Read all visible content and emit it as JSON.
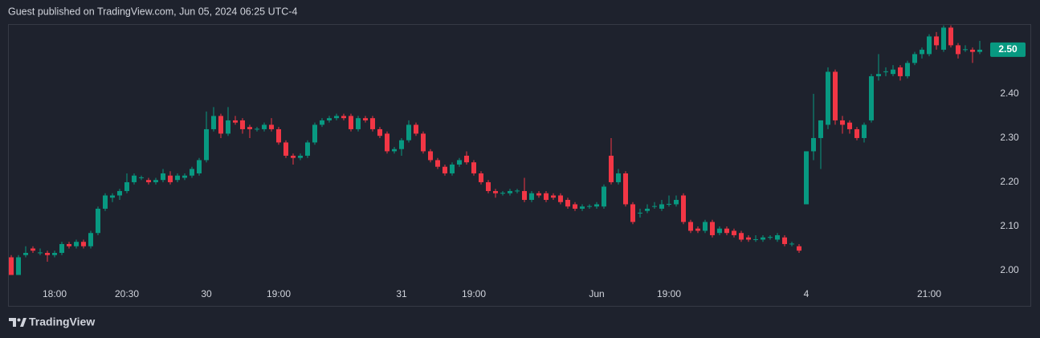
{
  "header": "Guest published on TradingView.com, Jun 05, 2024 06:25 UTC-4",
  "footer_brand": "TradingView",
  "chart_data": {
    "type": "candlestick",
    "up_color": "#089981",
    "down_color": "#f23645",
    "grid": false,
    "ylim": [
      1.92,
      2.558
    ],
    "yticks": [
      {
        "value": 2.0,
        "label": "2.00"
      },
      {
        "value": 2.1,
        "label": "2.10"
      },
      {
        "value": 2.2,
        "label": "2.20"
      },
      {
        "value": 2.3,
        "label": "2.30"
      },
      {
        "value": 2.4,
        "label": "2.40"
      },
      {
        "value": 2.5,
        "label": "2.50"
      }
    ],
    "last_price": {
      "value": 2.5,
      "label": "2.50"
    },
    "categories": [
      null,
      null,
      null,
      null,
      null,
      null,
      "18:00",
      null,
      null,
      null,
      null,
      null,
      null,
      null,
      null,
      null,
      "20:30",
      null,
      null,
      null,
      null,
      null,
      null,
      null,
      null,
      null,
      null,
      "30",
      null,
      null,
      null,
      null,
      null,
      null,
      null,
      null,
      null,
      "19:00",
      null,
      null,
      null,
      null,
      null,
      null,
      null,
      null,
      null,
      null,
      null,
      null,
      null,
      null,
      null,
      null,
      "31",
      null,
      null,
      null,
      null,
      null,
      null,
      null,
      null,
      null,
      "19:00",
      null,
      null,
      null,
      null,
      null,
      null,
      null,
      null,
      null,
      null,
      null,
      null,
      null,
      null,
      null,
      null,
      "Jun",
      null,
      null,
      null,
      null,
      null,
      null,
      null,
      null,
      null,
      "19:00",
      null,
      null,
      null,
      null,
      null,
      null,
      null,
      null,
      null,
      null,
      null,
      null,
      null,
      null,
      null,
      null,
      null,
      null,
      "4",
      null,
      null,
      null,
      null,
      null,
      null,
      null,
      null,
      null,
      null,
      null,
      null,
      null,
      null,
      null,
      null,
      "21:00",
      null,
      null,
      null,
      null,
      null,
      null,
      null
    ],
    "candles": [
      [
        2.03,
        2.035,
        1.99,
        1.99
      ],
      [
        1.99,
        2.035,
        1.99,
        2.03
      ],
      [
        2.035,
        2.055,
        2.03,
        2.04
      ],
      [
        2.05,
        2.055,
        2.04,
        2.045
      ],
      [
        2.04,
        2.05,
        2.035,
        2.041
      ],
      [
        2.04,
        2.045,
        2.02,
        2.035
      ],
      [
        2.035,
        2.045,
        2.03,
        2.04
      ],
      [
        2.04,
        2.065,
        2.035,
        2.06
      ],
      [
        2.06,
        2.065,
        2.05,
        2.055
      ],
      [
        2.055,
        2.07,
        2.05,
        2.065
      ],
      [
        2.065,
        2.07,
        2.05,
        2.055
      ],
      [
        2.055,
        2.09,
        2.05,
        2.085
      ],
      [
        2.085,
        2.145,
        2.08,
        2.14
      ],
      [
        2.14,
        2.175,
        2.135,
        2.17
      ],
      [
        2.165,
        2.175,
        2.155,
        2.17
      ],
      [
        2.17,
        2.185,
        2.16,
        2.18
      ],
      [
        2.18,
        2.22,
        2.175,
        2.2
      ],
      [
        2.2,
        2.22,
        2.195,
        2.215
      ],
      [
        2.21,
        2.215,
        2.205,
        2.211
      ],
      [
        2.205,
        2.21,
        2.195,
        2.2
      ],
      [
        2.2,
        2.21,
        2.195,
        2.205
      ],
      [
        2.205,
        2.23,
        2.2,
        2.22
      ],
      [
        2.215,
        2.225,
        2.195,
        2.2
      ],
      [
        2.205,
        2.22,
        2.2,
        2.215
      ],
      [
        2.21,
        2.22,
        2.205,
        2.215
      ],
      [
        2.215,
        2.235,
        2.21,
        2.23
      ],
      [
        2.22,
        2.255,
        2.215,
        2.25
      ],
      [
        2.25,
        2.36,
        2.245,
        2.32
      ],
      [
        2.32,
        2.37,
        2.315,
        2.35
      ],
      [
        2.35,
        2.355,
        2.3,
        2.31
      ],
      [
        2.31,
        2.37,
        2.305,
        2.34
      ],
      [
        2.34,
        2.35,
        2.33,
        2.335
      ],
      [
        2.34,
        2.345,
        2.31,
        2.32
      ],
      [
        2.325,
        2.33,
        2.3,
        2.32
      ],
      [
        2.32,
        2.325,
        2.315,
        2.321
      ],
      [
        2.32,
        2.335,
        2.315,
        2.33
      ],
      [
        2.33,
        2.345,
        2.315,
        2.32
      ],
      [
        2.32,
        2.325,
        2.285,
        2.29
      ],
      [
        2.29,
        2.295,
        2.255,
        2.26
      ],
      [
        2.26,
        2.265,
        2.24,
        2.255
      ],
      [
        2.255,
        2.265,
        2.25,
        2.26
      ],
      [
        2.26,
        2.295,
        2.255,
        2.29
      ],
      [
        2.29,
        2.335,
        2.285,
        2.33
      ],
      [
        2.33,
        2.345,
        2.325,
        2.34
      ],
      [
        2.34,
        2.35,
        2.335,
        2.345
      ],
      [
        2.345,
        2.355,
        2.34,
        2.35
      ],
      [
        2.35,
        2.355,
        2.34,
        2.345
      ],
      [
        2.35,
        2.355,
        2.315,
        2.32
      ],
      [
        2.32,
        2.35,
        2.315,
        2.345
      ],
      [
        2.345,
        2.35,
        2.335,
        2.34
      ],
      [
        2.345,
        2.35,
        2.315,
        2.32
      ],
      [
        2.32,
        2.325,
        2.3,
        2.305
      ],
      [
        2.31,
        2.315,
        2.265,
        2.27
      ],
      [
        2.27,
        2.28,
        2.265,
        2.275
      ],
      [
        2.275,
        2.3,
        2.26,
        2.295
      ],
      [
        2.295,
        2.34,
        2.29,
        2.33
      ],
      [
        2.33,
        2.335,
        2.305,
        2.31
      ],
      [
        2.31,
        2.315,
        2.265,
        2.27
      ],
      [
        2.27,
        2.275,
        2.245,
        2.25
      ],
      [
        2.25,
        2.255,
        2.23,
        2.235
      ],
      [
        2.235,
        2.24,
        2.215,
        2.22
      ],
      [
        2.22,
        2.245,
        2.215,
        2.24
      ],
      [
        2.24,
        2.255,
        2.235,
        2.25
      ],
      [
        2.26,
        2.27,
        2.24,
        2.245
      ],
      [
        2.245,
        2.25,
        2.215,
        2.22
      ],
      [
        2.22,
        2.225,
        2.195,
        2.2
      ],
      [
        2.2,
        2.205,
        2.175,
        2.18
      ],
      [
        2.18,
        2.185,
        2.165,
        2.175
      ],
      [
        2.175,
        2.18,
        2.17,
        2.176
      ],
      [
        2.175,
        2.185,
        2.17,
        2.18
      ],
      [
        2.18,
        2.185,
        2.175,
        2.181
      ],
      [
        2.18,
        2.21,
        2.155,
        2.16
      ],
      [
        2.16,
        2.18,
        2.155,
        2.175
      ],
      [
        2.175,
        2.18,
        2.165,
        2.17
      ],
      [
        2.175,
        2.18,
        2.155,
        2.16
      ],
      [
        2.17,
        2.175,
        2.16,
        2.165
      ],
      [
        2.17,
        2.175,
        2.15,
        2.155
      ],
      [
        2.16,
        2.165,
        2.14,
        2.145
      ],
      [
        2.15,
        2.155,
        2.135,
        2.14
      ],
      [
        2.14,
        2.15,
        2.135,
        2.145
      ],
      [
        2.145,
        2.15,
        2.14,
        2.146
      ],
      [
        2.145,
        2.155,
        2.14,
        2.15
      ],
      [
        2.145,
        2.195,
        2.14,
        2.19
      ],
      [
        2.26,
        2.3,
        2.195,
        2.2
      ],
      [
        2.2,
        2.23,
        2.195,
        2.22
      ],
      [
        2.22,
        2.225,
        2.145,
        2.15
      ],
      [
        2.15,
        2.155,
        2.105,
        2.11
      ],
      [
        2.13,
        2.14,
        2.12,
        2.131
      ],
      [
        2.135,
        2.15,
        2.13,
        2.14
      ],
      [
        2.145,
        2.155,
        2.14,
        2.146
      ],
      [
        2.14,
        2.16,
        2.135,
        2.15
      ],
      [
        2.15,
        2.17,
        2.145,
        2.151
      ],
      [
        2.15,
        2.17,
        2.145,
        2.16
      ],
      [
        2.17,
        2.175,
        2.105,
        2.11
      ],
      [
        2.11,
        2.115,
        2.085,
        2.09
      ],
      [
        2.095,
        2.1,
        2.085,
        2.09
      ],
      [
        2.09,
        2.115,
        2.085,
        2.11
      ],
      [
        2.11,
        2.115,
        2.075,
        2.08
      ],
      [
        2.085,
        2.1,
        2.08,
        2.095
      ],
      [
        2.095,
        2.1,
        2.08,
        2.085
      ],
      [
        2.09,
        2.095,
        2.075,
        2.08
      ],
      [
        2.085,
        2.09,
        2.065,
        2.07
      ],
      [
        2.075,
        2.08,
        2.065,
        2.07
      ],
      [
        2.07,
        2.08,
        2.065,
        2.071
      ],
      [
        2.07,
        2.08,
        2.065,
        2.075
      ],
      [
        2.075,
        2.08,
        2.07,
        2.076
      ],
      [
        2.07,
        2.085,
        2.065,
        2.08
      ],
      [
        2.075,
        2.08,
        2.055,
        2.06
      ],
      [
        2.06,
        2.065,
        2.055,
        2.061
      ],
      [
        2.055,
        2.06,
        2.04,
        2.045
      ],
      [
        2.15,
        2.27,
        2.15,
        2.27
      ],
      [
        2.27,
        2.4,
        2.25,
        2.3
      ],
      [
        2.3,
        2.34,
        2.23,
        2.34
      ],
      [
        2.33,
        2.46,
        2.32,
        2.45
      ],
      [
        2.45,
        2.455,
        2.33,
        2.34
      ],
      [
        2.34,
        2.35,
        2.31,
        2.33
      ],
      [
        2.335,
        2.34,
        2.31,
        2.32
      ],
      [
        2.32,
        2.325,
        2.295,
        2.3
      ],
      [
        2.3,
        2.335,
        2.29,
        2.33
      ],
      [
        2.34,
        2.445,
        2.335,
        2.44
      ],
      [
        2.44,
        2.49,
        2.43,
        2.445
      ],
      [
        2.45,
        2.46,
        2.44,
        2.451
      ],
      [
        2.445,
        2.465,
        2.44,
        2.455
      ],
      [
        2.46,
        2.465,
        2.43,
        2.44
      ],
      [
        2.44,
        2.475,
        2.435,
        2.47
      ],
      [
        2.47,
        2.495,
        2.465,
        2.49
      ],
      [
        2.49,
        2.505,
        2.48,
        2.5
      ],
      [
        2.49,
        2.535,
        2.485,
        2.53
      ],
      [
        2.53,
        2.54,
        2.5,
        2.51
      ],
      [
        2.5,
        2.555,
        2.495,
        2.55
      ],
      [
        2.55,
        2.555,
        2.505,
        2.51
      ],
      [
        2.51,
        2.515,
        2.48,
        2.49
      ],
      [
        2.5,
        2.51,
        2.495,
        2.501
      ],
      [
        2.5,
        2.505,
        2.47,
        2.495
      ],
      [
        2.495,
        2.52,
        2.49,
        2.5
      ]
    ]
  }
}
